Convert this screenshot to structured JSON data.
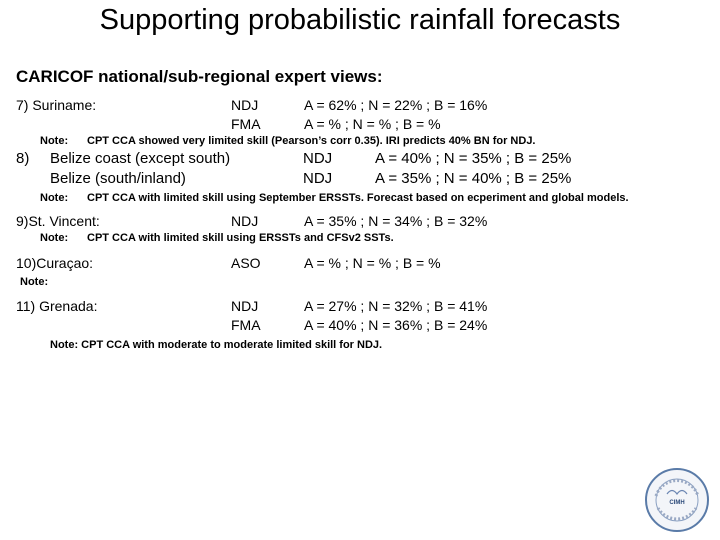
{
  "title": "Supporting probabilistic rainfall forecasts",
  "subtitle": "CARICOF national/sub-regional expert views:",
  "entries": {
    "suriname": {
      "label": "7)  Suriname:",
      "season1": "NDJ",
      "values1": "A = 62% ;  N = 22% ;  B = 16%",
      "season2": "FMA",
      "values2": "A = % ;  N = % ;  B = %",
      "note_prefix": "Note:",
      "note": "CPT CCA showed very limited skill (Pearson’s corr 0.35). IRI predicts 40% BN for NDJ."
    },
    "belize": {
      "number": "8)",
      "label1": "Belize coast (except south)",
      "season1": "NDJ",
      "values1": "A = 40% ;  N = 35% ;  B = 25%",
      "label2": "Belize (south/inland)",
      "season2": "NDJ",
      "values2": "A = 35% ;  N = 40% ;  B = 25%",
      "note_prefix": "Note:",
      "note": "CPT CCA with limited skill using September ERSSTs. Forecast based on ecperiment and global models."
    },
    "st_vincent": {
      "label": "9)St. Vincent:",
      "season1": "NDJ",
      "values1": "A = 35% ;  N = 34% ;  B = 32%",
      "note_prefix": "Note:",
      "note": "CPT CCA with limited skill using ERSSTs and CFSv2 SSTs."
    },
    "curacao": {
      "label": "10)Curaçao:",
      "season1": "ASO",
      "values1": "A = % ;  N = % ;  B = %",
      "note_prefix": "Note:"
    },
    "grenada": {
      "label": "11) Grenada:",
      "season1": "NDJ",
      "values1": "A = 27% ;  N = 32% ;  B = 41%",
      "season2": "FMA",
      "values2": "A = 40% ;  N = 36% ;  B = 24%",
      "note": "Note:  CPT CCA with moderate to moderate limited skill for NDJ."
    }
  },
  "logo": {
    "text": "CIMH",
    "ring_color": "#5a7ba8"
  }
}
